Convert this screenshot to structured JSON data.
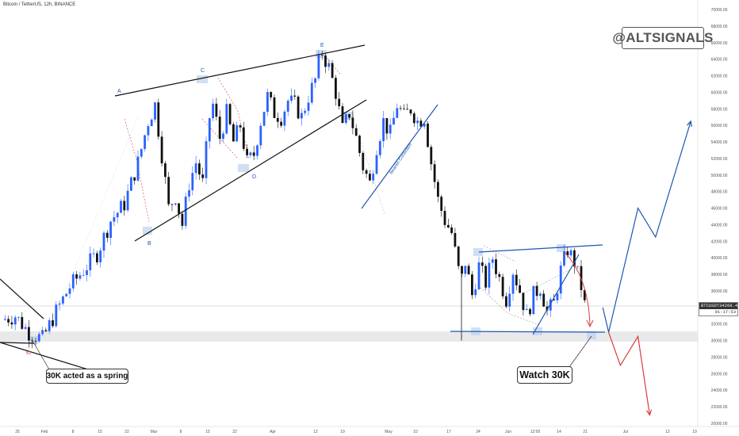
{
  "header": {
    "title": "Bitcoin / TetherUS, 12h, BINANCE"
  },
  "watermark": {
    "text": "@ALTSIGNALS"
  },
  "annotations": {
    "spring_label": "30K acted as a spring",
    "watch_label": "Watch 30K",
    "bearish_label": "Bearish Correction",
    "wave_labels": [
      "A",
      "B",
      "C",
      "D",
      "E"
    ],
    "small_label": "B2"
  },
  "price_tag": {
    "symbol": "BTCUSDT",
    "price": "34268.41",
    "countdown": "01:17:53"
  },
  "colors": {
    "up": "#2962ff",
    "down": "#111111",
    "trendline": "#111111",
    "blue_line": "#1e56b4",
    "red_line": "#d63c3c",
    "support_zone": "#e9e9ec",
    "highlight": "#bcd2ec"
  },
  "chart_data": {
    "type": "candlestick",
    "title": "Bitcoin / TetherUS, 12h, BINANCE",
    "ylim": [
      20000,
      70000
    ],
    "y_ticks": [
      "70000.00",
      "68000.00",
      "66000.00",
      "64000.00",
      "62000.00",
      "60000.00",
      "58000.00",
      "56000.00",
      "54000.00",
      "52000.00",
      "50000.00",
      "48000.00",
      "46000.00",
      "44000.00",
      "42000.00",
      "40000.00",
      "38000.00",
      "36000.00",
      "34000.00",
      "32000.00",
      "30000.00",
      "28000.00",
      "26000.00",
      "24000.00",
      "22000.00",
      "20000.00"
    ],
    "x_ticks": [
      "25",
      "Feb",
      "8",
      "15",
      "22",
      "Mar",
      "8",
      "15",
      "22",
      "Apr",
      "12",
      "19",
      "May",
      "10",
      "17",
      "24",
      "Jun",
      "12:00",
      "14",
      "21",
      "Jul",
      "12",
      "19"
    ],
    "last_price": 34268.41,
    "support_zone": [
      30000,
      31200
    ],
    "path_keypoints": [
      [
        0,
        32500
      ],
      [
        4,
        33000
      ],
      [
        8,
        31000
      ],
      [
        12,
        30200
      ],
      [
        16,
        33500
      ],
      [
        20,
        36500
      ],
      [
        24,
        38500
      ],
      [
        28,
        40500
      ],
      [
        32,
        44500
      ],
      [
        36,
        46500
      ],
      [
        40,
        51500
      ],
      [
        43,
        56500
      ],
      [
        45,
        58500
      ],
      [
        47,
        52500
      ],
      [
        49,
        46000
      ],
      [
        51,
        47500
      ],
      [
        53,
        44000
      ],
      [
        55,
        49000
      ],
      [
        57,
        51500
      ],
      [
        59,
        49000
      ],
      [
        61,
        57000
      ],
      [
        62,
        58500
      ],
      [
        64,
        54500
      ],
      [
        66,
        57500
      ],
      [
        68,
        54000
      ],
      [
        70,
        56000
      ],
      [
        72,
        51500
      ],
      [
        74,
        52500
      ],
      [
        76,
        56500
      ],
      [
        78,
        59500
      ],
      [
        80,
        57500
      ],
      [
        82,
        57000
      ],
      [
        84,
        59000
      ],
      [
        86,
        58500
      ],
      [
        88,
        57000
      ],
      [
        90,
        59500
      ],
      [
        92,
        61500
      ],
      [
        93,
        63500
      ],
      [
        94,
        64800
      ],
      [
        96,
        63000
      ],
      [
        98,
        60000
      ],
      [
        100,
        55500
      ],
      [
        102,
        57500
      ],
      [
        104,
        54500
      ],
      [
        106,
        51000
      ],
      [
        108,
        49000
      ],
      [
        110,
        53500
      ],
      [
        112,
        56500
      ],
      [
        114,
        55000
      ],
      [
        116,
        58500
      ],
      [
        118,
        57000
      ],
      [
        120,
        58000
      ],
      [
        122,
        56500
      ],
      [
        124,
        57000
      ],
      [
        126,
        51500
      ],
      [
        128,
        47000
      ],
      [
        130,
        44500
      ],
      [
        132,
        43000
      ],
      [
        134,
        38500
      ],
      [
        135,
        37500
      ],
      [
        136,
        39500
      ],
      [
        138,
        35500
      ],
      [
        140,
        39000
      ],
      [
        142,
        37000
      ],
      [
        144,
        40000
      ],
      [
        146,
        37500
      ],
      [
        148,
        35000
      ],
      [
        150,
        38500
      ],
      [
        152,
        36000
      ],
      [
        154,
        33000
      ],
      [
        156,
        35500
      ],
      [
        158,
        36500
      ],
      [
        160,
        33500
      ],
      [
        162,
        34500
      ],
      [
        164,
        38500
      ],
      [
        166,
        41000
      ],
      [
        168,
        39500
      ],
      [
        170,
        36500
      ],
      [
        171,
        34300
      ]
    ],
    "projections": [
      {
        "name": "bullish",
        "color": "#1e56b4",
        "points": [
          [
            "2021-06-24",
            34000
          ],
          [
            "2021-06-25",
            31000
          ],
          [
            "2021-06-30",
            46000
          ],
          [
            "2021-07-03",
            42500
          ],
          [
            "2021-07-09",
            56500
          ]
        ]
      },
      {
        "name": "bearish",
        "color": "#d63c3c",
        "points": [
          [
            "2021-06-25",
            31000
          ],
          [
            "2021-06-27",
            27000
          ],
          [
            "2021-06-30",
            30500
          ],
          [
            "2021-07-02",
            21000
          ]
        ]
      }
    ]
  }
}
